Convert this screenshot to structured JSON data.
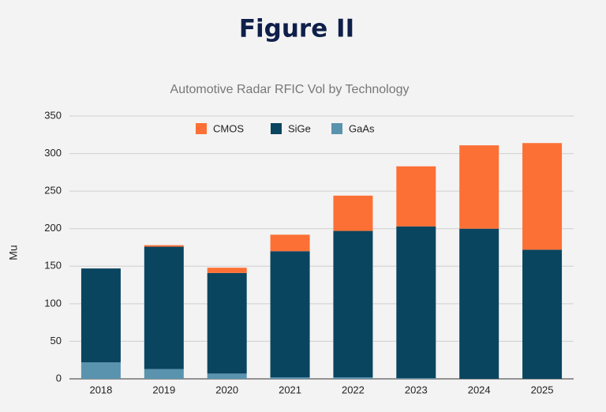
{
  "header": {
    "title": "Figure II"
  },
  "chart_data": {
    "type": "stacked-bar",
    "title": "Automotive Radar RFIC Vol by Technology",
    "y_label": "Mu",
    "categories": [
      "2018",
      "2019",
      "2020",
      "2021",
      "2022",
      "2023",
      "2024",
      "2025"
    ],
    "series": [
      {
        "name": "CMOS",
        "color": "#fd7035",
        "values": [
          0,
          2,
          7,
          22,
          47,
          80,
          111,
          142
        ]
      },
      {
        "name": "SiGe",
        "color": "#0a4560",
        "values": [
          125,
          163,
          134,
          168,
          195,
          202,
          200,
          172
        ]
      },
      {
        "name": "GaAs",
        "color": "#5a93ae",
        "values": [
          22,
          13,
          7,
          2,
          2,
          1,
          0,
          0
        ]
      }
    ],
    "ylim": [
      0,
      350
    ],
    "yticks": [
      0,
      50,
      100,
      150,
      200,
      250,
      300,
      350
    ],
    "grid": true,
    "legend": "top"
  }
}
